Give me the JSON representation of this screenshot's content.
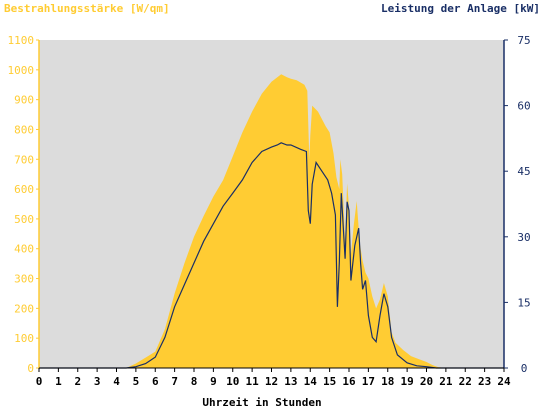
{
  "chart_data": {
    "type": "area",
    "left_axis_title": "Bestrahlungsstärke [W/qm]",
    "right_axis_title": "Leistung der Anlage [kW]",
    "xlabel": "Uhrzeit in Stunden",
    "x_ticks": [
      "0",
      "1",
      "2",
      "3",
      "4",
      "5",
      "6",
      "7",
      "8",
      "9",
      "10",
      "11",
      "12",
      "13",
      "14",
      "15",
      "16",
      "17",
      "18",
      "19",
      "20",
      "21",
      "22",
      "23",
      "24"
    ],
    "y_left_ticks": [
      "0",
      "100",
      "200",
      "300",
      "400",
      "500",
      "600",
      "700",
      "800",
      "900",
      "1000",
      "1100"
    ],
    "y_right_ticks": [
      "0",
      "15",
      "30",
      "45",
      "60",
      "75"
    ],
    "xlim": [
      0,
      24
    ],
    "ylim_left": [
      0,
      1100
    ],
    "ylim_right": [
      0,
      75
    ],
    "colors": {
      "irradiance_fill": "#ffcc33",
      "power_line": "#1a2f66",
      "left_axis": "#ffcc33",
      "right_axis": "#1a2f66",
      "plot_bg": "#dcdcdc",
      "bottom_axis": "#000000"
    },
    "series": [
      {
        "axis": "left",
        "style": "filled-area",
        "points": [
          [
            0,
            0
          ],
          [
            4.5,
            0
          ],
          [
            5,
            15
          ],
          [
            5.5,
            35
          ],
          [
            6,
            55
          ],
          [
            6.5,
            130
          ],
          [
            7,
            250
          ],
          [
            7.5,
            350
          ],
          [
            8,
            440
          ],
          [
            8.5,
            510
          ],
          [
            9,
            575
          ],
          [
            9.5,
            630
          ],
          [
            10,
            710
          ],
          [
            10.5,
            790
          ],
          [
            11,
            860
          ],
          [
            11.5,
            920
          ],
          [
            12,
            960
          ],
          [
            12.5,
            985
          ],
          [
            12.8,
            975
          ],
          [
            13,
            970
          ],
          [
            13.3,
            965
          ],
          [
            13.7,
            950
          ],
          [
            13.85,
            930
          ],
          [
            13.95,
            700
          ],
          [
            14.0,
            780
          ],
          [
            14.1,
            880
          ],
          [
            14.4,
            860
          ],
          [
            14.8,
            810
          ],
          [
            15.0,
            790
          ],
          [
            15.2,
            720
          ],
          [
            15.35,
            640
          ],
          [
            15.5,
            600
          ],
          [
            15.55,
            700
          ],
          [
            15.65,
            650
          ],
          [
            15.8,
            420
          ],
          [
            15.9,
            620
          ],
          [
            16.0,
            540
          ],
          [
            16.1,
            380
          ],
          [
            16.25,
            480
          ],
          [
            16.4,
            560
          ],
          [
            16.55,
            420
          ],
          [
            16.7,
            360
          ],
          [
            16.85,
            320
          ],
          [
            17.0,
            300
          ],
          [
            17.2,
            240
          ],
          [
            17.4,
            200
          ],
          [
            17.6,
            230
          ],
          [
            17.8,
            285
          ],
          [
            18.0,
            240
          ],
          [
            18.2,
            120
          ],
          [
            18.4,
            85
          ],
          [
            18.8,
            60
          ],
          [
            19.2,
            40
          ],
          [
            19.6,
            30
          ],
          [
            20.0,
            20
          ],
          [
            20.3,
            10
          ],
          [
            20.6,
            3
          ],
          [
            21,
            0
          ],
          [
            24,
            0
          ]
        ]
      },
      {
        "axis": "right",
        "style": "line",
        "points": [
          [
            0,
            0
          ],
          [
            4.5,
            0
          ],
          [
            5,
            0.3
          ],
          [
            5.5,
            1
          ],
          [
            6,
            2.5
          ],
          [
            6.5,
            7
          ],
          [
            7,
            14
          ],
          [
            7.5,
            19
          ],
          [
            8,
            24
          ],
          [
            8.5,
            29
          ],
          [
            9,
            33
          ],
          [
            9.5,
            37
          ],
          [
            10,
            40
          ],
          [
            10.5,
            43
          ],
          [
            11,
            47
          ],
          [
            11.5,
            49.5
          ],
          [
            12,
            50.5
          ],
          [
            12.3,
            51
          ],
          [
            12.5,
            51.5
          ],
          [
            12.8,
            51
          ],
          [
            13,
            51
          ],
          [
            13.5,
            50
          ],
          [
            13.8,
            49.5
          ],
          [
            13.9,
            36
          ],
          [
            14.0,
            33
          ],
          [
            14.1,
            42
          ],
          [
            14.3,
            47
          ],
          [
            14.6,
            45
          ],
          [
            14.9,
            43
          ],
          [
            15.1,
            40
          ],
          [
            15.3,
            35
          ],
          [
            15.4,
            14
          ],
          [
            15.5,
            24
          ],
          [
            15.6,
            40
          ],
          [
            15.8,
            25
          ],
          [
            15.9,
            38
          ],
          [
            16.0,
            36
          ],
          [
            16.1,
            20
          ],
          [
            16.3,
            28
          ],
          [
            16.5,
            32
          ],
          [
            16.6,
            24
          ],
          [
            16.7,
            18
          ],
          [
            16.85,
            20
          ],
          [
            17.0,
            12
          ],
          [
            17.2,
            7
          ],
          [
            17.4,
            6
          ],
          [
            17.6,
            12
          ],
          [
            17.8,
            17
          ],
          [
            18.0,
            14
          ],
          [
            18.2,
            7
          ],
          [
            18.5,
            3
          ],
          [
            19,
            1.2
          ],
          [
            19.5,
            0.5
          ],
          [
            20,
            0.3
          ],
          [
            20.5,
            0
          ],
          [
            24,
            0
          ]
        ]
      }
    ]
  }
}
